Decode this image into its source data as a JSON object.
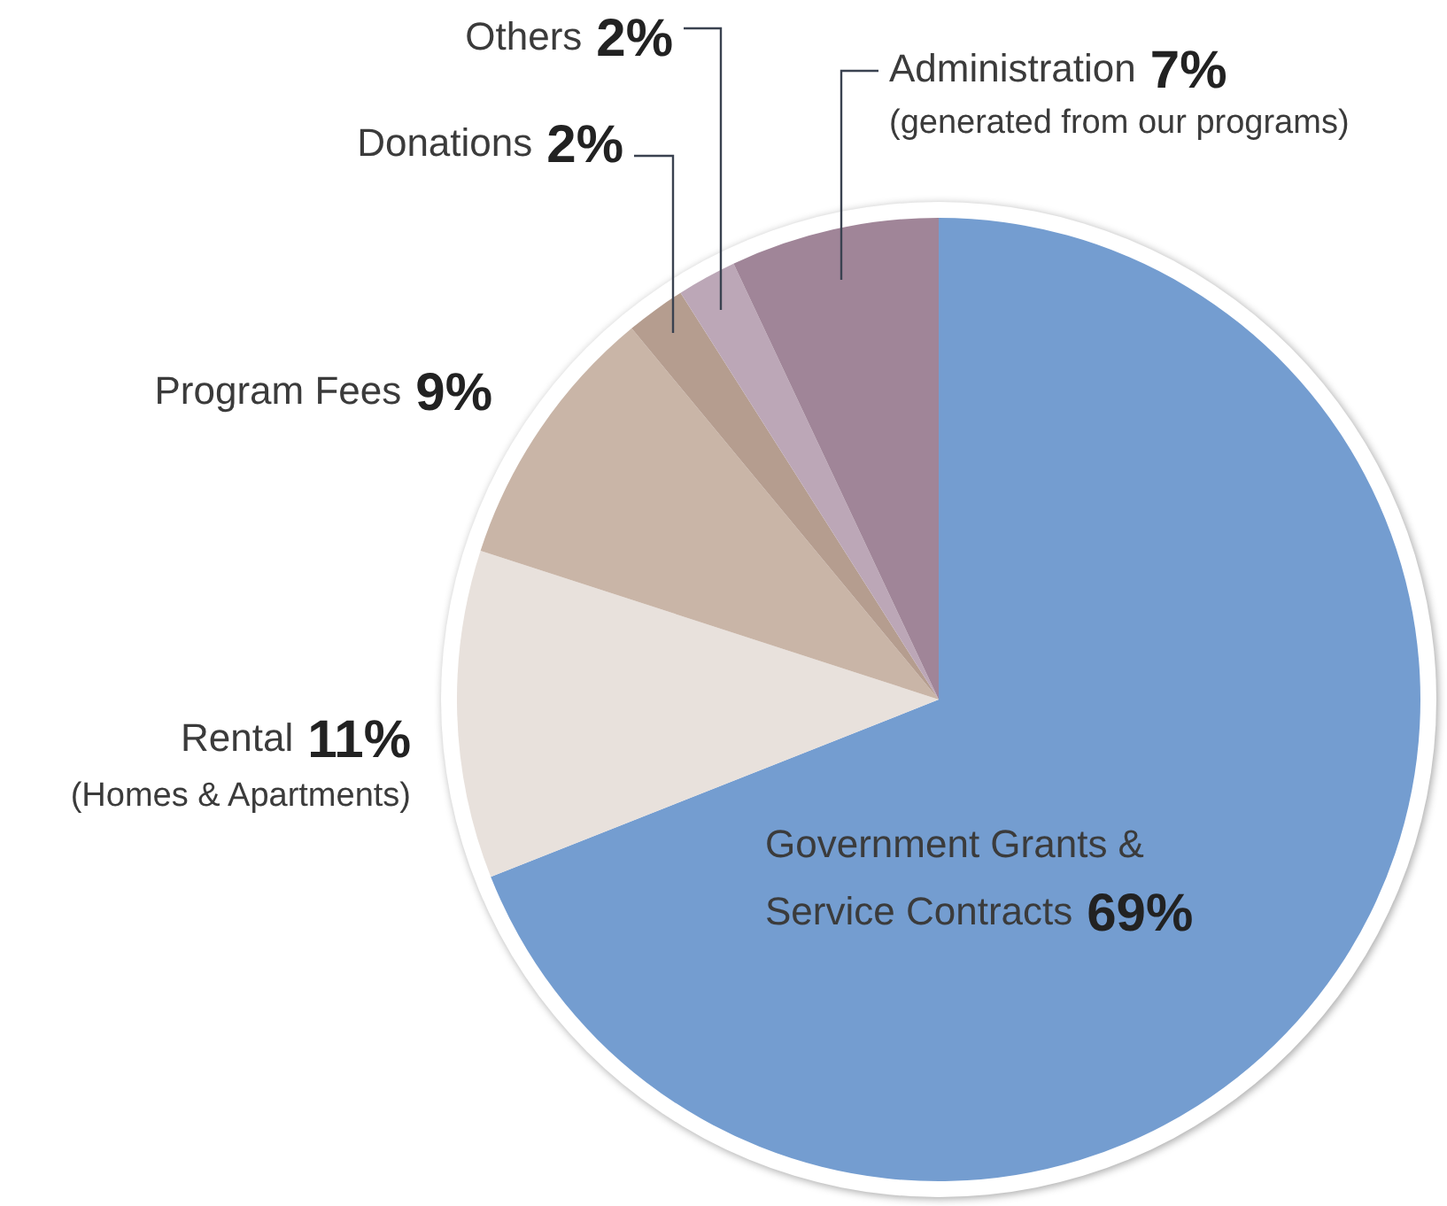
{
  "chart_data": {
    "type": "pie",
    "categories": [
      "Government Grants & Service Contracts",
      "Rental",
      "Program Fees",
      "Donations",
      "Others",
      "Administration"
    ],
    "values": [
      69,
      11,
      9,
      2,
      2,
      7
    ],
    "value_labels": [
      "69%",
      "11%",
      "9%",
      "2%",
      "2%",
      "7%"
    ],
    "colors": [
      "#749dd0",
      "#e8e1dc",
      "#c9b5a7",
      "#b59d8f",
      "#bca7b7",
      "#a08598"
    ],
    "annotations": [
      {
        "text": "(Homes & Apartments)",
        "x": "Rental"
      },
      {
        "text": "(generated from our programs)",
        "x": "Administration"
      }
    ],
    "legend": false
  }
}
